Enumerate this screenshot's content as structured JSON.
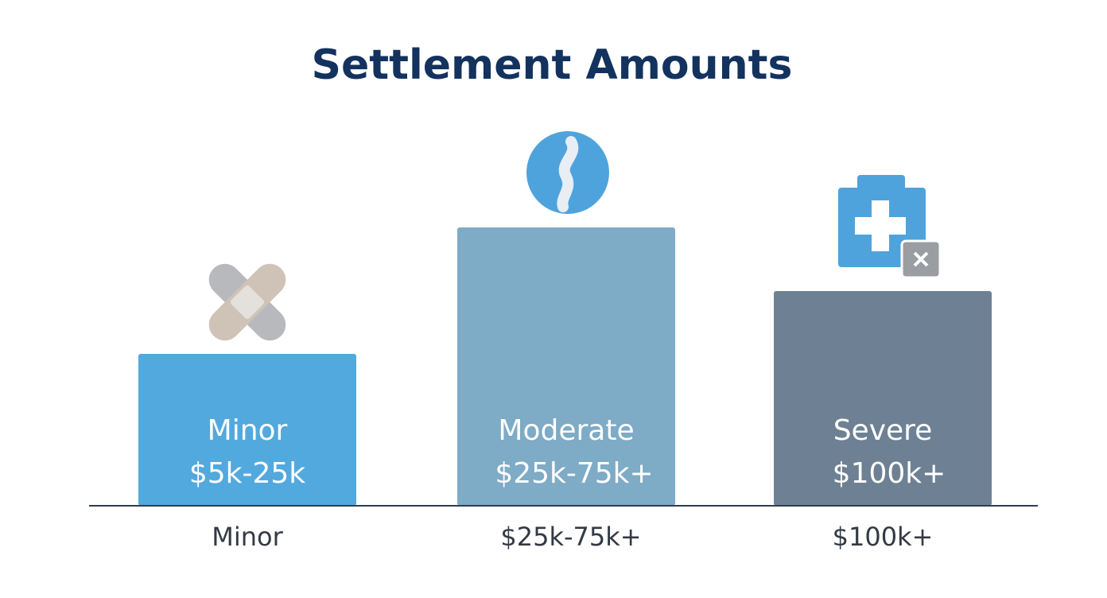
{
  "title": "Settlement Amounts",
  "bars": [
    {
      "name": "Minor",
      "range": "$5k-25k",
      "caption": "Minor"
    },
    {
      "name": "Moderate",
      "range": "$25k-75k+",
      "caption": "$25k-75k+"
    },
    {
      "name": "Severe",
      "range": "$100k+",
      "caption": "$100k+"
    }
  ]
}
